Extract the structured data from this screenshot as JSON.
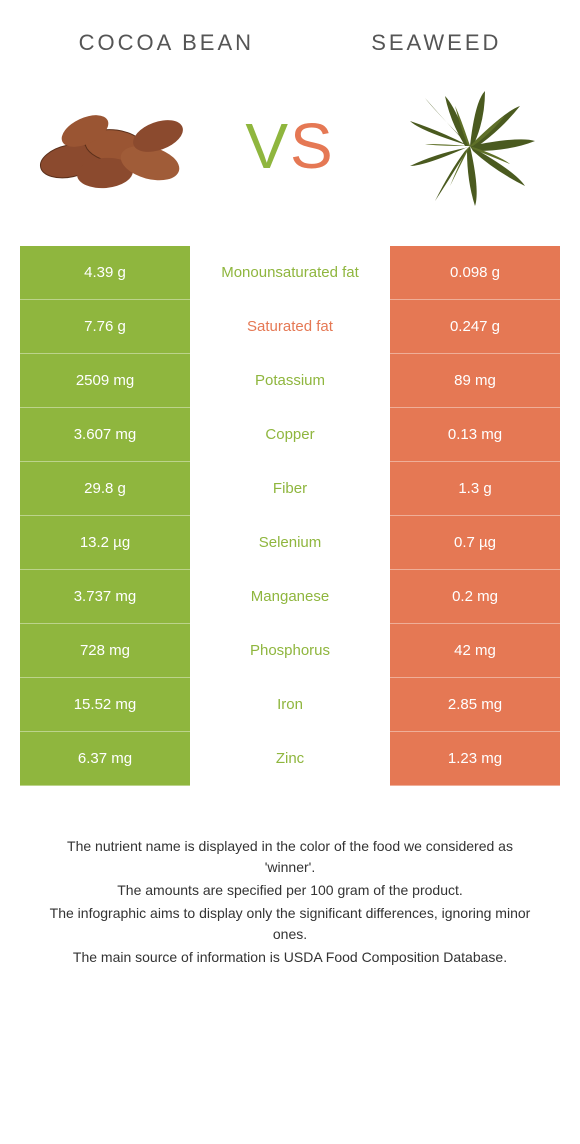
{
  "colors": {
    "green": "#8fb63e",
    "orange": "#e57854",
    "vs_v": "#8fb63e",
    "vs_s": "#e57854"
  },
  "header": {
    "left": "COCOA BEAN",
    "right": "SEAWEED"
  },
  "vs": {
    "v": "V",
    "s": "S"
  },
  "rows": [
    {
      "left": "4.39 g",
      "mid": "Monounsaturated fat",
      "right": "0.098 g",
      "winner": "left"
    },
    {
      "left": "7.76 g",
      "mid": "Saturated fat",
      "right": "0.247 g",
      "winner": "right"
    },
    {
      "left": "2509 mg",
      "mid": "Potassium",
      "right": "89 mg",
      "winner": "left"
    },
    {
      "left": "3.607 mg",
      "mid": "Copper",
      "right": "0.13 mg",
      "winner": "left"
    },
    {
      "left": "29.8 g",
      "mid": "Fiber",
      "right": "1.3 g",
      "winner": "left"
    },
    {
      "left": "13.2 µg",
      "mid": "Selenium",
      "right": "0.7 µg",
      "winner": "left"
    },
    {
      "left": "3.737 mg",
      "mid": "Manganese",
      "right": "0.2 mg",
      "winner": "left"
    },
    {
      "left": "728 mg",
      "mid": "Phosphorus",
      "right": "42 mg",
      "winner": "left"
    },
    {
      "left": "15.52 mg",
      "mid": "Iron",
      "right": "2.85 mg",
      "winner": "left"
    },
    {
      "left": "6.37 mg",
      "mid": "Zinc",
      "right": "1.23 mg",
      "winner": "left"
    }
  ],
  "footer": {
    "line1": "The nutrient name is displayed in the color of the food we considered as 'winner'.",
    "line2": "The amounts are specified per 100 gram of the product.",
    "line3": "The infographic aims to display only the significant differences, ignoring minor ones.",
    "line4": "The main source of information is USDA Food Composition Database."
  }
}
